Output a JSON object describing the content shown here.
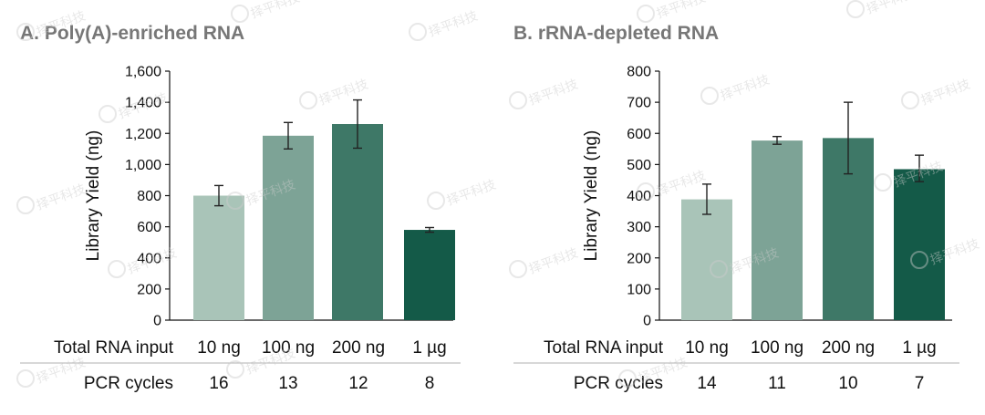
{
  "colors": [
    "#a9c4b8",
    "#7da396",
    "#3e7867",
    "#145a48"
  ],
  "table_labels": {
    "input_label": "Total RNA input",
    "cycles_label": "PCR cycles"
  },
  "watermark": "择平科技",
  "chart_data": [
    {
      "type": "bar",
      "title": "A. Poly(A)-enriched RNA",
      "ylabel": "Library Yield (ng)",
      "ylim": [
        0,
        1600
      ],
      "yticks": [
        "0",
        "200",
        "400",
        "600",
        "800",
        "1,000",
        "1,200",
        "1,400",
        "1,600"
      ],
      "categories": [
        "10 ng",
        "100 ng",
        "200 ng",
        "1 µg"
      ],
      "values": [
        800,
        1185,
        1260,
        580
      ],
      "error_low": [
        735,
        1100,
        1105,
        565
      ],
      "error_high": [
        865,
        1270,
        1415,
        595
      ],
      "pcr_cycles": [
        "16",
        "13",
        "12",
        "8"
      ]
    },
    {
      "type": "bar",
      "title": "B. rRNA-depleted RNA",
      "ylabel": "Library Yield (ng)",
      "ylim": [
        0,
        800
      ],
      "yticks": [
        "0",
        "100",
        "200",
        "300",
        "400",
        "500",
        "600",
        "700",
        "800"
      ],
      "categories": [
        "10 ng",
        "100 ng",
        "200 ng",
        "1 µg"
      ],
      "values": [
        388,
        577,
        585,
        485
      ],
      "error_low": [
        340,
        565,
        470,
        445
      ],
      "error_high": [
        437,
        590,
        700,
        530
      ],
      "pcr_cycles": [
        "14",
        "11",
        "10",
        "7"
      ]
    }
  ]
}
